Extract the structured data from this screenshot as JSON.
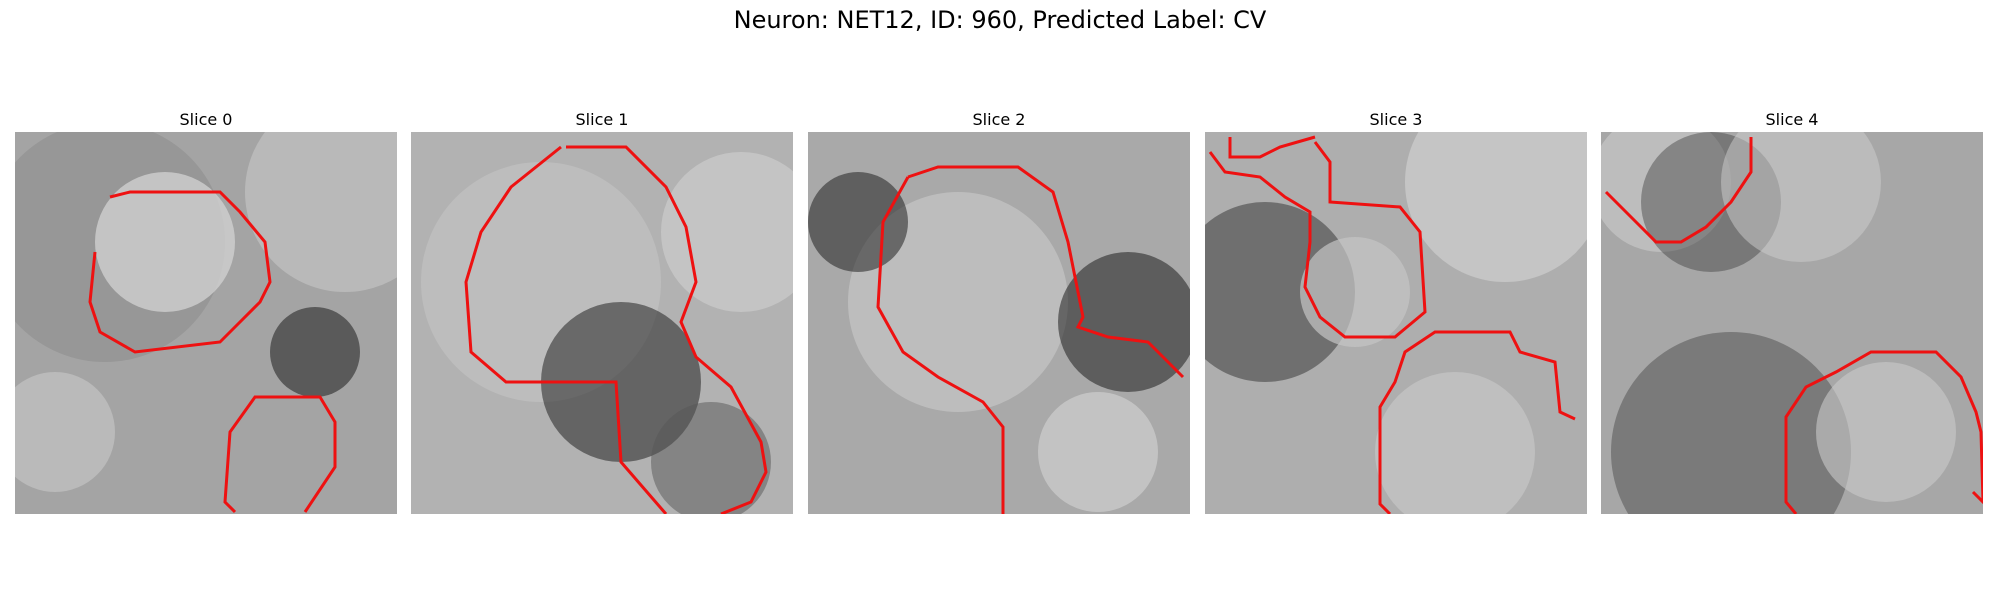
{
  "figure": {
    "title": "Neuron: NET12, ID: 960, Predicted Label: CV",
    "contour_color": "#ee1111"
  },
  "panels": [
    {
      "title": "Slice 0"
    },
    {
      "title": "Slice 1"
    },
    {
      "title": "Slice 2"
    },
    {
      "title": "Slice 3"
    },
    {
      "title": "Slice 4"
    }
  ]
}
